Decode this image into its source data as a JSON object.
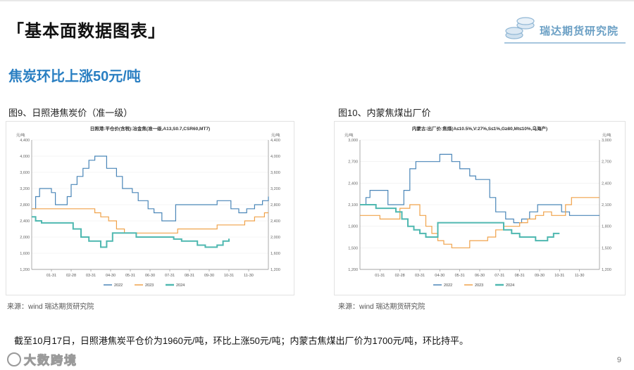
{
  "header": {
    "section_title": "「基本面数据图表」",
    "logo_text": "瑞达期货研究院"
  },
  "subtitle": "焦炭环比上涨50元/吨",
  "figures": [
    {
      "title": "图9、日照港焦炭价（准一级）",
      "source": "来源：wind   瑞达期货研究院"
    },
    {
      "title": "图10、内蒙焦煤出厂价",
      "source": "来源：wind   瑞达期货研究院"
    }
  ],
  "summary": "截至10月17日，日照港焦炭平仓价为1960元/吨，环比上涨50元/吨；内蒙古焦煤出厂价为1700元/吨，环比持平。",
  "watermark": "大数跨境",
  "page_number": "9",
  "colors": {
    "2022": "#4a86b8",
    "2023": "#f0a24a",
    "2024": "#4fb8b0"
  },
  "chart_data": [
    {
      "type": "line",
      "title": "日照港:平仓价(含税):冶金焦(准一级,A13,S0.7,CSR60,MT7)",
      "unit_left": "元/吨",
      "unit_right": "元/吨",
      "ylim": [
        1200,
        4400
      ],
      "yticks": [
        1200,
        1600,
        2000,
        2400,
        2800,
        3200,
        3600,
        4000,
        4400
      ],
      "ytick_labels": [
        "1,200",
        "1,600",
        "2,000",
        "2,400",
        "2,800",
        "3,200",
        "3,600",
        "4,000",
        "4,400"
      ],
      "x_tick_labels": [
        "01-31",
        "02-28",
        "03-31",
        "04-30",
        "05-31",
        "06-30",
        "07-31",
        "08-31",
        "09-30",
        "10-31",
        "11-30"
      ],
      "x_tick_positions": [
        1,
        2,
        3,
        4,
        5,
        6,
        7,
        8,
        9,
        10,
        11
      ],
      "xlim": [
        0,
        12
      ],
      "series": [
        {
          "name": "2022",
          "x": [
            0,
            0.2,
            0.4,
            1.0,
            1.2,
            1.7,
            1.8,
            2.0,
            2.3,
            2.6,
            2.9,
            3.2,
            3.6,
            3.8,
            4.3,
            4.6,
            5.1,
            5.4,
            5.9,
            6.2,
            6.6,
            6.9,
            7.3,
            7.6,
            7.9,
            8.2,
            8.6,
            9.0,
            9.4,
            9.8,
            10.1,
            10.5,
            10.9,
            11.3,
            11.7,
            12.0
          ],
          "values": [
            2700,
            3000,
            3200,
            3100,
            2800,
            2800,
            3000,
            3300,
            3500,
            3700,
            3900,
            4000,
            4000,
            3700,
            3500,
            3200,
            3100,
            2900,
            2700,
            2600,
            2400,
            2400,
            2800,
            2800,
            2800,
            2800,
            2800,
            2800,
            2900,
            2900,
            2700,
            2600,
            2700,
            2800,
            2900,
            3000
          ]
        },
        {
          "name": "2023",
          "x": [
            0,
            0.3,
            0.7,
            1.3,
            1.8,
            2.4,
            2.8,
            3.2,
            3.5,
            3.9,
            4.3,
            4.7,
            5.2,
            5.8,
            6.3,
            6.8,
            7.1,
            7.4,
            7.8,
            8.3,
            8.7,
            9.0,
            9.4,
            9.8,
            10.3,
            10.8,
            11.3,
            11.8,
            12.0
          ],
          "values": [
            2700,
            2700,
            2700,
            2700,
            2700,
            2700,
            2700,
            2600,
            2500,
            2400,
            2200,
            2100,
            2100,
            2100,
            2100,
            2100,
            2100,
            2200,
            2200,
            2200,
            2200,
            2200,
            2300,
            2300,
            2300,
            2400,
            2500,
            2600,
            2600
          ]
        },
        {
          "name": "2024",
          "x": [
            0,
            0.2,
            0.5,
            0.9,
            1.4,
            1.8,
            2.1,
            2.5,
            2.9,
            3.2,
            3.5,
            3.8,
            4.1,
            4.3,
            4.8,
            5.3,
            5.8,
            6.3,
            6.8,
            7.2,
            7.6,
            8.0,
            8.4,
            8.8,
            9.1,
            9.4,
            9.7,
            10.0
          ],
          "values": [
            2500,
            2400,
            2350,
            2350,
            2350,
            2350,
            2200,
            2000,
            1900,
            1900,
            1750,
            1900,
            2100,
            2100,
            2100,
            2000,
            2000,
            2000,
            2000,
            1950,
            1900,
            1900,
            1800,
            1750,
            1750,
            1800,
            1900,
            1960
          ]
        }
      ],
      "legend": [
        "2022",
        "2023",
        "2024"
      ],
      "legend_position": "bottom"
    },
    {
      "type": "line",
      "title": "内蒙古:出厂价:焦煤(A≤10.5%,V:27%,S≤1%,G≥80,Mt≤10%,乌海产)",
      "unit_left": "元/吨",
      "unit_right": "元/吨",
      "ylim": [
        1200,
        3000
      ],
      "yticks": [
        1200,
        1500,
        1800,
        2100,
        2400,
        2700,
        3000
      ],
      "ytick_labels": [
        "1,200",
        "1,500",
        "1,800",
        "2,100",
        "2,400",
        "2,700",
        "3,000"
      ],
      "x_tick_labels": [
        "01-31",
        "02-28",
        "03-31",
        "04-30",
        "05-31",
        "06-30",
        "07-31",
        "08-31",
        "09-30",
        "10-31",
        "11-30"
      ],
      "x_tick_positions": [
        1,
        2,
        3,
        4,
        5,
        6,
        7,
        8,
        9,
        10,
        11
      ],
      "xlim": [
        0,
        12
      ],
      "series": [
        {
          "name": "2022",
          "x": [
            0,
            0.3,
            0.5,
            1.0,
            1.4,
            1.8,
            2.2,
            2.5,
            2.8,
            3.2,
            3.6,
            4.0,
            4.3,
            4.6,
            5.0,
            5.5,
            5.8,
            6.2,
            6.5,
            6.8,
            7.0,
            7.3,
            7.7,
            8.1,
            8.5,
            8.9,
            9.3,
            9.7,
            10.1,
            10.5,
            11.0,
            11.5,
            12.0
          ],
          "values": [
            2100,
            2200,
            2300,
            2300,
            2100,
            2100,
            2300,
            2600,
            2700,
            2700,
            2700,
            2800,
            2800,
            2700,
            2600,
            2500,
            2450,
            2450,
            2200,
            2000,
            2000,
            1900,
            1850,
            1900,
            2000,
            2100,
            2100,
            2100,
            2000,
            1950,
            1950,
            1950,
            1950
          ]
        },
        {
          "name": "2023",
          "x": [
            0,
            0.5,
            1.0,
            1.6,
            2.0,
            2.5,
            3.0,
            3.3,
            3.6,
            3.9,
            4.2,
            4.6,
            5.0,
            5.5,
            6.0,
            6.4,
            6.8,
            7.2,
            7.6,
            8.0,
            8.4,
            8.8,
            9.2,
            9.6,
            10.0,
            10.3,
            10.6,
            11.0,
            11.5,
            12.0
          ],
          "values": [
            1950,
            1950,
            1900,
            1900,
            2050,
            2100,
            1950,
            1800,
            1700,
            1600,
            1550,
            1500,
            1500,
            1600,
            1600,
            1650,
            1750,
            1800,
            1800,
            1850,
            1900,
            1950,
            2000,
            1950,
            1950,
            2100,
            2200,
            2200,
            2200,
            2200
          ]
        },
        {
          "name": "2024",
          "x": [
            0,
            0.3,
            0.8,
            1.3,
            1.8,
            2.1,
            2.4,
            2.7,
            3.0,
            3.3,
            3.6,
            3.9,
            4.3,
            4.8,
            5.3,
            5.8,
            6.3,
            6.8,
            7.2,
            7.6,
            8.0,
            8.4,
            8.8,
            9.1,
            9.4,
            9.7,
            10.0
          ],
          "values": [
            2100,
            2100,
            2050,
            2050,
            2000,
            1900,
            1800,
            1750,
            1700,
            1650,
            1650,
            1850,
            1850,
            1850,
            1850,
            1850,
            1850,
            1850,
            1750,
            1700,
            1650,
            1650,
            1600,
            1600,
            1650,
            1700,
            1700
          ]
        }
      ],
      "legend": [
        "2022",
        "2023",
        "2024"
      ],
      "legend_position": "bottom"
    }
  ]
}
